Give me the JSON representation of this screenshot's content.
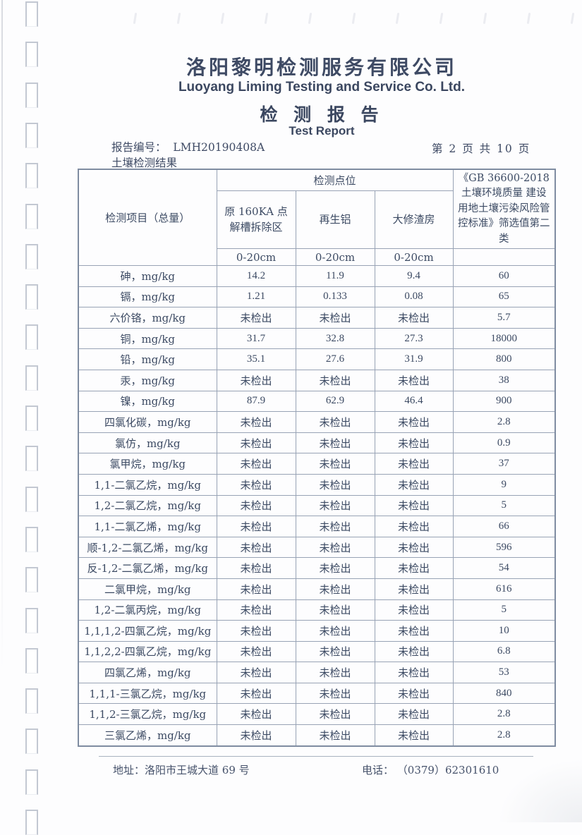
{
  "header": {
    "company_cn": "洛阳黎明检测服务有限公司",
    "company_en": "Luoyang Liming Testing and Service Co. Ltd.",
    "report_title_cn": "检 测 报 告",
    "report_title_en": "Test Report",
    "report_no_label": "报告编号：",
    "report_no": "LMH20190408A",
    "page_indicator": "第 2 页 共 10 页",
    "section_title": "土壤检测结果"
  },
  "table": {
    "header": {
      "item_col": "检测项目（总量）",
      "points_group": "检测点位",
      "sample_cols": [
        "原 160KA 点解槽拆除区",
        "再生铝",
        "大修渣房"
      ],
      "depth_cols": [
        "0-20cm",
        "0-20cm",
        "0-20cm"
      ],
      "standard_col": "《GB 36600-2018 土壤环境质量 建设用地土壤污染风险管控标准》筛选值第二类"
    },
    "rows": [
      {
        "item": "砷，mg/kg",
        "values": [
          "14.2",
          "11.9",
          "9.4"
        ],
        "limit": "60"
      },
      {
        "item": "镉，mg/kg",
        "values": [
          "1.21",
          "0.133",
          "0.08"
        ],
        "limit": "65"
      },
      {
        "item": "六价铬，mg/kg",
        "values": [
          "未检出",
          "未检出",
          "未检出"
        ],
        "limit": "5.7"
      },
      {
        "item": "铜，mg/kg",
        "values": [
          "31.7",
          "32.8",
          "27.3"
        ],
        "limit": "18000"
      },
      {
        "item": "铅，mg/kg",
        "values": [
          "35.1",
          "27.6",
          "31.9"
        ],
        "limit": "800"
      },
      {
        "item": "汞，mg/kg",
        "values": [
          "未检出",
          "未检出",
          "未检出"
        ],
        "limit": "38"
      },
      {
        "item": "镍，mg/kg",
        "values": [
          "87.9",
          "62.9",
          "46.4"
        ],
        "limit": "900"
      },
      {
        "item": "四氯化碳，mg/kg",
        "values": [
          "未检出",
          "未检出",
          "未检出"
        ],
        "limit": "2.8"
      },
      {
        "item": "氯仿，mg/kg",
        "values": [
          "未检出",
          "未检出",
          "未检出"
        ],
        "limit": "0.9"
      },
      {
        "item": "氯甲烷，mg/kg",
        "values": [
          "未检出",
          "未检出",
          "未检出"
        ],
        "limit": "37"
      },
      {
        "item": "1,1-二氯乙烷，mg/kg",
        "values": [
          "未检出",
          "未检出",
          "未检出"
        ],
        "limit": "9"
      },
      {
        "item": "1,2-二氯乙烷，mg/kg",
        "values": [
          "未检出",
          "未检出",
          "未检出"
        ],
        "limit": "5"
      },
      {
        "item": "1,1-二氯乙烯，mg/kg",
        "values": [
          "未检出",
          "未检出",
          "未检出"
        ],
        "limit": "66"
      },
      {
        "item": "顺-1,2-二氯乙烯，mg/kg",
        "values": [
          "未检出",
          "未检出",
          "未检出"
        ],
        "limit": "596"
      },
      {
        "item": "反-1,2-二氯乙烯，mg/kg",
        "values": [
          "未检出",
          "未检出",
          "未检出"
        ],
        "limit": "54"
      },
      {
        "item": "二氯甲烷，mg/kg",
        "values": [
          "未检出",
          "未检出",
          "未检出"
        ],
        "limit": "616"
      },
      {
        "item": "1,2-二氯丙烷，mg/kg",
        "values": [
          "未检出",
          "未检出",
          "未检出"
        ],
        "limit": "5"
      },
      {
        "item": "1,1,1,2-四氯乙烷，mg/kg",
        "values": [
          "未检出",
          "未检出",
          "未检出"
        ],
        "limit": "10"
      },
      {
        "item": "1,1,2,2-四氯乙烷，mg/kg",
        "values": [
          "未检出",
          "未检出",
          "未检出"
        ],
        "limit": "6.8"
      },
      {
        "item": "四氯乙烯，mg/kg",
        "values": [
          "未检出",
          "未检出",
          "未检出"
        ],
        "limit": "53"
      },
      {
        "item": "1,1,1-三氯乙烷，mg/kg",
        "values": [
          "未检出",
          "未检出",
          "未检出"
        ],
        "limit": "840"
      },
      {
        "item": "1,1,2-三氯乙烷，mg/kg",
        "values": [
          "未检出",
          "未检出",
          "未检出"
        ],
        "limit": "2.8"
      },
      {
        "item": "三氯乙烯，mg/kg",
        "values": [
          "未检出",
          "未检出",
          "未检出"
        ],
        "limit": "2.8"
      }
    ]
  },
  "footer": {
    "address_label": "地址：",
    "address": "洛阳市王城大道 69 号",
    "phone_label": "电话：",
    "phone": "（0379）62301610"
  },
  "colors": {
    "text": "#3c4a63",
    "table_border": "#98a3b5",
    "table_outer_border": "#7f8ca1",
    "page_background": "#fdfdfe"
  }
}
